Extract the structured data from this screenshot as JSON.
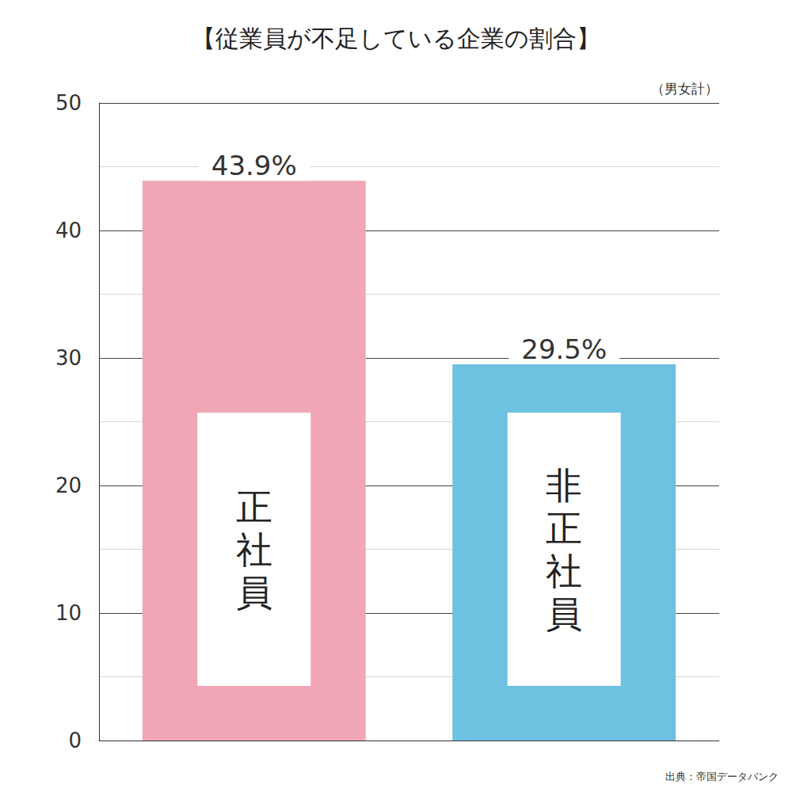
{
  "chart_data": {
    "type": "bar",
    "title": "【従業員が不足している企業の割合】",
    "categories": [
      "正社員",
      "非正社員"
    ],
    "values": [
      43.9,
      29.5
    ],
    "value_labels": [
      "43.9%",
      "29.5%"
    ],
    "colors": [
      "#f0a7b5",
      "#6dc1e1"
    ],
    "ylim": [
      0,
      50
    ],
    "yticks": [
      0,
      10,
      20,
      30,
      40,
      50
    ],
    "grid": true,
    "data_labels": true,
    "tick_labels": "y",
    "annotations": [
      "（男女計）",
      "出典：帝国データバンク"
    ]
  }
}
